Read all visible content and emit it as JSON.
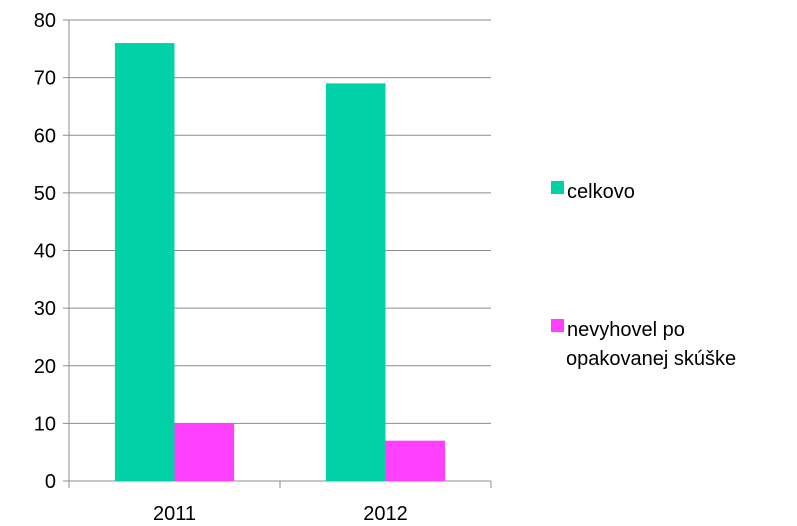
{
  "chart_data": {
    "type": "bar",
    "categories": [
      "2011",
      "2012"
    ],
    "series": [
      {
        "name": "celkovo",
        "values": [
          76,
          69
        ],
        "color": "#00d1a7"
      },
      {
        "name": "nevyhovel po opakovanej skúške",
        "values": [
          10,
          7
        ],
        "color": "#ff40ff"
      }
    ],
    "ylim": [
      0,
      80
    ],
    "yticks": [
      0,
      10,
      20,
      30,
      40,
      50,
      60,
      70,
      80
    ],
    "grid": true,
    "legend_position": "right",
    "legend_lines": [
      [
        "celkovo"
      ],
      [
        "nevyhovel po",
        "opakovanej skúške"
      ]
    ]
  }
}
